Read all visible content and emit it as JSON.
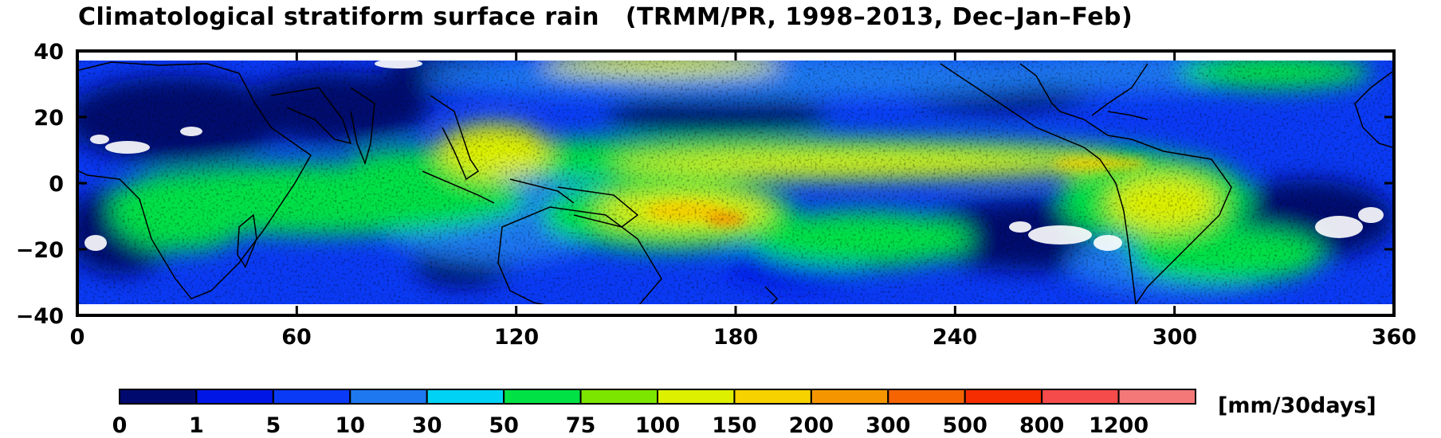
{
  "title": "Climatological stratiform surface rain   (TRMM/PR, 1998–2013, Dec–Jan–Feb)",
  "map": {
    "x_ticks": [
      "0",
      "60",
      "120",
      "180",
      "240",
      "300",
      "360"
    ],
    "y_ticks": [
      "40",
      "20",
      "0",
      "−20",
      "−40"
    ],
    "x_range": [
      0,
      360
    ],
    "y_range": [
      -40,
      40
    ],
    "data_extent_lat": [
      -36.5,
      36.5
    ]
  },
  "colorbar": {
    "unit": "[mm/30days]",
    "tick_labels": [
      "0",
      "1",
      "5",
      "10",
      "30",
      "50",
      "75",
      "100",
      "150",
      "200",
      "300",
      "500",
      "800",
      "1200"
    ],
    "colors": [
      "#000a6e",
      "#0016e6",
      "#0a3af5",
      "#1e78f0",
      "#00d2f5",
      "#00e146",
      "#7de600",
      "#dcf000",
      "#f5d200",
      "#f59600",
      "#f56400",
      "#f52d00",
      "#f54b4b",
      "#f57878"
    ]
  }
}
